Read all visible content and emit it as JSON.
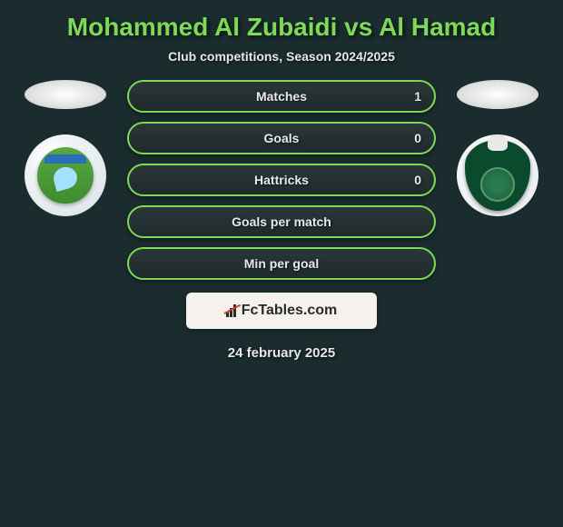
{
  "header": {
    "title": "Mohammed Al Zubaidi vs Al Hamad",
    "subtitle": "Club competitions, Season 2024/2025"
  },
  "teams": {
    "left": {
      "badge_name": "alfateh-fc-badge",
      "badge_bg": "#ffffff",
      "shield_color": "#4a9c35"
    },
    "right": {
      "badge_name": "al-ahli-badge",
      "badge_bg": "#f8f9fa",
      "shield_color": "#0b4a2c"
    }
  },
  "stats": [
    {
      "label": "Matches",
      "value": "1"
    },
    {
      "label": "Goals",
      "value": "0"
    },
    {
      "label": "Hattricks",
      "value": "0"
    },
    {
      "label": "Goals per match",
      "value": ""
    },
    {
      "label": "Min per goal",
      "value": ""
    }
  ],
  "brand": {
    "text": "FcTables.com"
  },
  "date_text": "24 february 2025",
  "style": {
    "accent_color": "#7ed957",
    "background_color": "#1a2c2e",
    "pill_bg": "#22302f",
    "text_color": "#e8e8e8"
  }
}
